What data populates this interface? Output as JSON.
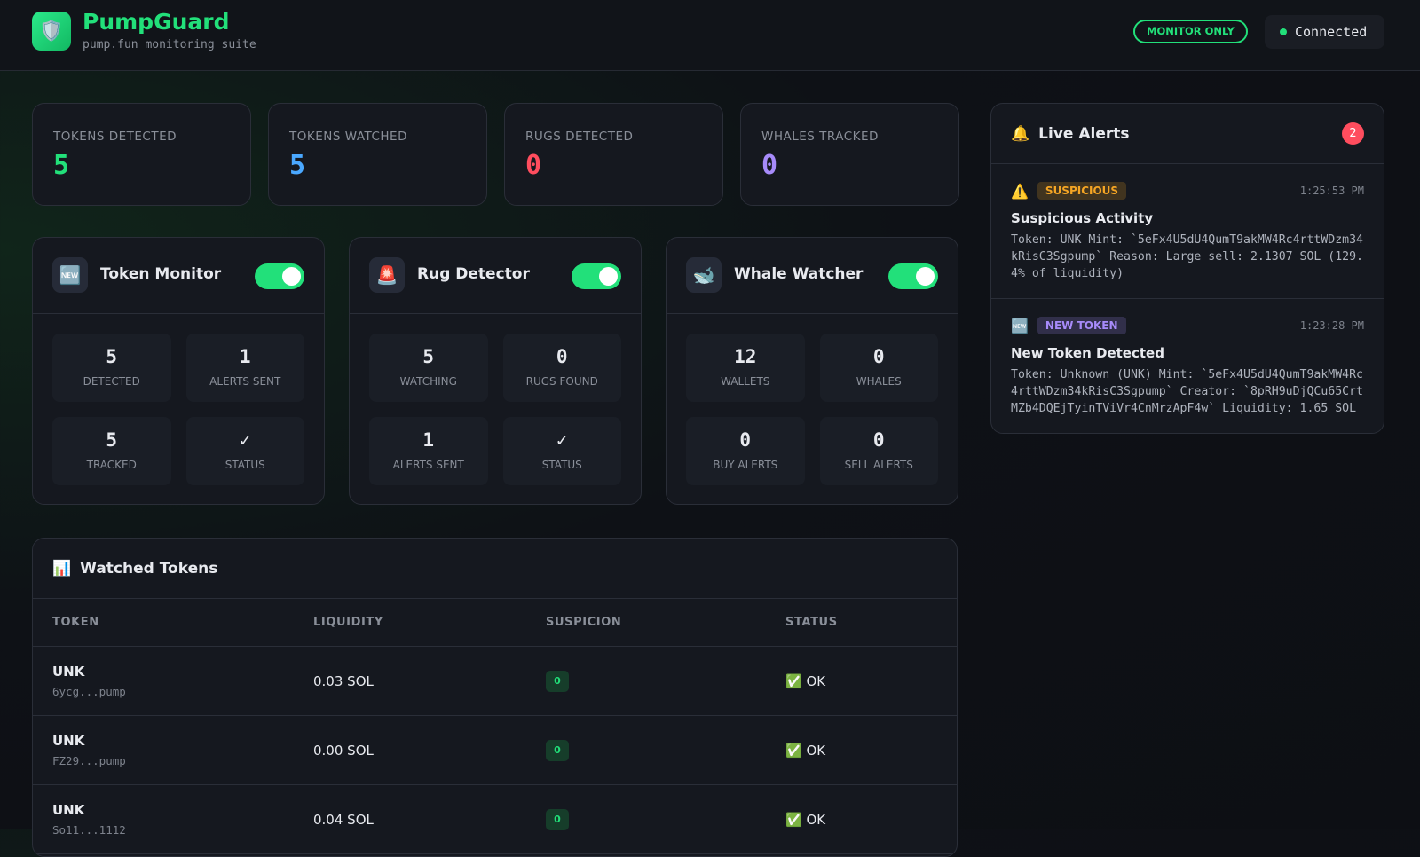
{
  "header": {
    "logo": "🛡️",
    "title": "PumpGuard",
    "subtitle": "pump.fun monitoring suite",
    "mode": "MONITOR ONLY",
    "connection": "Connected"
  },
  "stats": [
    {
      "label": "TOKENS DETECTED",
      "value": 5,
      "color": "#22e07a"
    },
    {
      "label": "TOKENS WATCHED",
      "value": 5,
      "color": "#4aa8ff"
    },
    {
      "label": "RUGS DETECTED",
      "value": 0,
      "color": "#ff4d5e"
    },
    {
      "label": "WHALES TRACKED",
      "value": 0,
      "color": "#a78bfa"
    }
  ],
  "modules": [
    {
      "icon": "🆕",
      "name": "Token Monitor",
      "enabled": true,
      "metrics": [
        {
          "value": 5,
          "label": "DETECTED"
        },
        {
          "value": 1,
          "label": "ALERTS SENT"
        },
        {
          "value": 5,
          "label": "TRACKED"
        },
        {
          "value": "✓",
          "label": "STATUS"
        }
      ]
    },
    {
      "icon": "🚨",
      "name": "Rug Detector",
      "enabled": true,
      "metrics": [
        {
          "value": 5,
          "label": "WATCHING"
        },
        {
          "value": 0,
          "label": "RUGS FOUND"
        },
        {
          "value": 1,
          "label": "ALERTS SENT"
        },
        {
          "value": "✓",
          "label": "STATUS"
        }
      ]
    },
    {
      "icon": "🐋",
      "name": "Whale Watcher",
      "enabled": true,
      "metrics": [
        {
          "value": 12,
          "label": "WALLETS"
        },
        {
          "value": 0,
          "label": "WHALES"
        },
        {
          "value": 0,
          "label": "BUY ALERTS"
        },
        {
          "value": 0,
          "label": "SELL ALERTS"
        }
      ]
    }
  ],
  "watched": {
    "icon": "📊",
    "title": "Watched Tokens",
    "columns": [
      "TOKEN",
      "LIQUIDITY",
      "SUSPICION",
      "STATUS"
    ],
    "rows": [
      {
        "token": "UNK",
        "mint": "6ycg...pump",
        "liquidity": "0.03 SOL",
        "suspicion": 0,
        "status": "✅ OK"
      },
      {
        "token": "UNK",
        "mint": "FZ29...pump",
        "liquidity": "0.00 SOL",
        "suspicion": 0,
        "status": "✅ OK"
      },
      {
        "token": "UNK",
        "mint": "So11...1112",
        "liquidity": "0.04 SOL",
        "suspicion": 0,
        "status": "✅ OK"
      }
    ]
  },
  "alerts": {
    "icon": "🔔",
    "title": "Live Alerts",
    "count": 2,
    "items": [
      {
        "icon": "⚠️",
        "badge": "SUSPICIOUS",
        "badge_color": "#f5a524",
        "time": "1:25:53 PM",
        "title": "Suspicious Activity",
        "body": "Token: UNK Mint: `5eFx4U5dU4QumT9akMW4Rc4rttWDzm34kRisC3Sgpump` Reason: Large sell: 2.1307 SOL (129.4% of liquidity)"
      },
      {
        "icon": "🆕",
        "badge": "NEW TOKEN",
        "badge_color": "#a78bfa",
        "time": "1:23:28 PM",
        "title": "New Token Detected",
        "body": "Token: Unknown (UNK) Mint: `5eFx4U5dU4QumT9akMW4Rc4rttWDzm34kRisC3Sgpump` Creator: `8pRH9uDjQCu65CrtMZb4DQEjTyinTViVr4CnMrzApF4w` Liquidity: 1.65 SOL"
      }
    ]
  }
}
